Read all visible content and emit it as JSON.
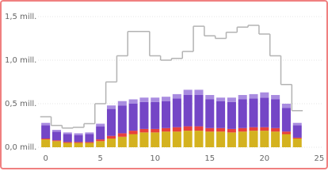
{
  "chart_data": {
    "type": "bar",
    "x": [
      0,
      1,
      2,
      3,
      4,
      5,
      6,
      7,
      8,
      9,
      10,
      11,
      12,
      13,
      14,
      15,
      16,
      17,
      18,
      19,
      20,
      21,
      22,
      23
    ],
    "series": [
      {
        "type": "bar",
        "color": "#d4b21f",
        "values": [
          0.09,
          0.07,
          0.05,
          0.05,
          0.05,
          0.07,
          0.1,
          0.12,
          0.15,
          0.17,
          0.17,
          0.18,
          0.18,
          0.19,
          0.19,
          0.18,
          0.18,
          0.17,
          0.18,
          0.19,
          0.19,
          0.18,
          0.15,
          0.1
        ]
      },
      {
        "type": "bar",
        "color": "#e8413c",
        "values": [
          0.01,
          0.01,
          0.01,
          0.01,
          0.01,
          0.02,
          0.03,
          0.04,
          0.04,
          0.04,
          0.04,
          0.04,
          0.05,
          0.05,
          0.05,
          0.04,
          0.04,
          0.04,
          0.04,
          0.04,
          0.04,
          0.04,
          0.03,
          0.01
        ]
      },
      {
        "type": "bar",
        "color": "#7446c6",
        "values": [
          0.15,
          0.1,
          0.09,
          0.08,
          0.09,
          0.15,
          0.31,
          0.32,
          0.31,
          0.31,
          0.31,
          0.31,
          0.33,
          0.36,
          0.36,
          0.33,
          0.31,
          0.31,
          0.33,
          0.33,
          0.34,
          0.33,
          0.27,
          0.14
        ]
      },
      {
        "type": "bar",
        "color": "#a98ce0",
        "values": [
          0.03,
          0.02,
          0.02,
          0.02,
          0.02,
          0.03,
          0.04,
          0.05,
          0.05,
          0.05,
          0.05,
          0.05,
          0.05,
          0.06,
          0.06,
          0.05,
          0.04,
          0.05,
          0.05,
          0.05,
          0.06,
          0.05,
          0.05,
          0.03
        ]
      },
      {
        "type": "step",
        "color": "#b3b3b3",
        "values": [
          0.35,
          0.25,
          0.22,
          0.23,
          0.27,
          0.5,
          0.75,
          1.05,
          1.33,
          1.33,
          1.05,
          1.0,
          1.02,
          1.1,
          1.39,
          1.28,
          1.25,
          1.32,
          1.38,
          1.4,
          1.3,
          1.05,
          0.72,
          0.42
        ]
      }
    ],
    "xlim": [
      -0.7,
      25.3
    ],
    "xticks": [
      0,
      5,
      10,
      15,
      20,
      25
    ],
    "ylim": [
      0,
      1.6
    ],
    "yticks": [
      {
        "value": 0,
        "label": "0,0 mill."
      },
      {
        "value": 0.5,
        "label": "0,5 mill."
      },
      {
        "value": 1.0,
        "label": "1,0 mill."
      },
      {
        "value": 1.5,
        "label": "1,5 mill."
      }
    ],
    "grid": true
  }
}
